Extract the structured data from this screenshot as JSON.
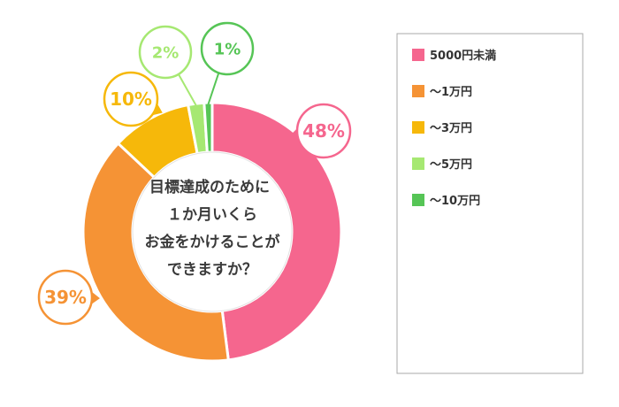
{
  "chart_data": {
    "type": "pie",
    "style": "donut",
    "title": "",
    "center_text": [
      "目標達成のために",
      "１か月いくら",
      "お金をかけることが",
      "できますか？"
    ],
    "categories": [
      "5000円未満",
      "〜1万円",
      "〜3万円",
      "〜5万円",
      "〜10万円"
    ],
    "values": [
      48,
      39,
      10,
      2,
      1
    ],
    "value_labels": [
      "48%",
      "39%",
      "10%",
      "2%",
      "1%"
    ],
    "colors": [
      "#f5668e",
      "#f59335",
      "#f6b80a",
      "#a6e872",
      "#56c556"
    ],
    "legend_position": "right",
    "legend_border_color": "#a8a8a8"
  }
}
